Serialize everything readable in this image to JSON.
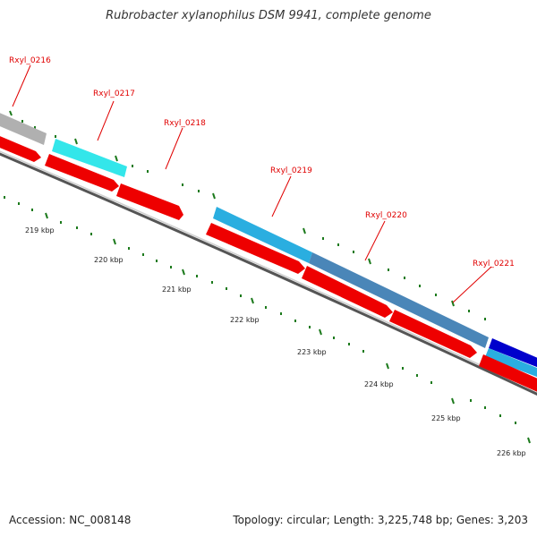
{
  "title": "Rubrobacter xylanophilus DSM 9941, complete genome",
  "footer": {
    "accession": "Accession: NC_008148",
    "topology": "Topology: circular; Length: 3,225,748 bp; Genes: 3,203"
  },
  "colors": {
    "red": "#ee0000",
    "gray": "#b0b0b0",
    "cyan": "#33e6ea",
    "skyblue": "#2aaee0",
    "steelblue": "#4a86b8",
    "navy": "#0000cc",
    "green": "#1c7a1c",
    "labelRed": "#e00000"
  },
  "gene_labels": [
    "Rxyl_0216",
    "Rxyl_0217",
    "Rxyl_0218",
    "Rxyl_0219",
    "Rxyl_0220",
    "Rxyl_0221"
  ],
  "tick_labels": [
    "219 kbp",
    "220 kbp",
    "221 kbp",
    "222 kbp",
    "223 kbp",
    "224 kbp",
    "225 kbp",
    "226 kbp"
  ]
}
